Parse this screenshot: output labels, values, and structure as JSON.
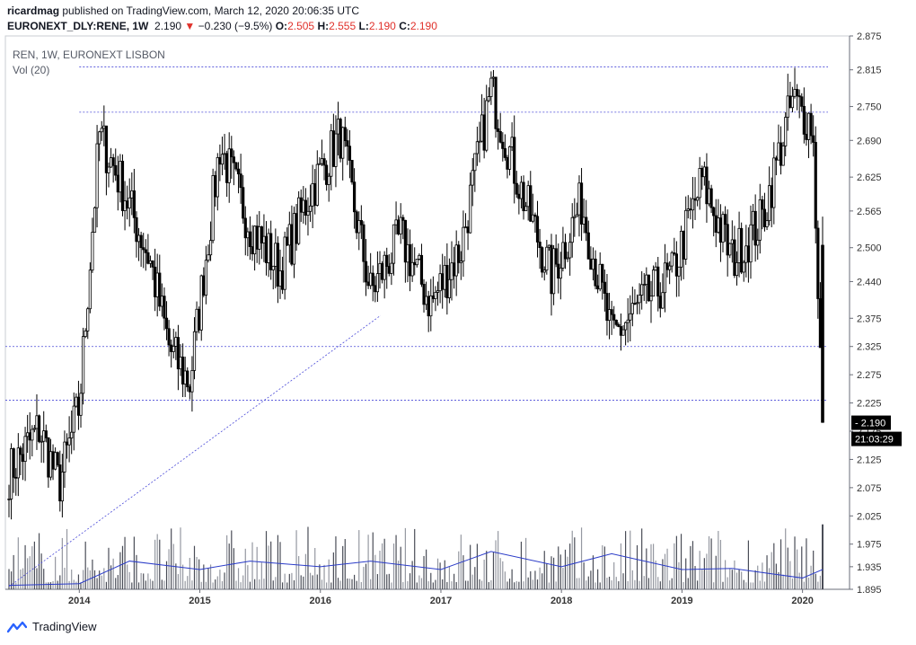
{
  "header": {
    "publisher": "ricardmag",
    "published_text": "published on TradingView.com, March 12, 2020 20:06:35 UTC",
    "symbol": "EURONEXT_DLY:RENE, 1W",
    "last": "2.190",
    "change_arrow": "▼",
    "change": "−0.230 (−9.5%)",
    "o_label": "O:",
    "o_value": "2.505",
    "h_label": "H:",
    "h_value": "2.555",
    "l_label": "L:",
    "l_value": "2.190",
    "c_label": "C:",
    "c_value": "2.190"
  },
  "legend": {
    "title": "REN, 1W, EURONEXT LISBON",
    "volume": "Vol (20)"
  },
  "footer": {
    "brand": "TradingView",
    "logo_icon": "tradingview-logo-icon"
  },
  "chart_data": {
    "type": "candlestick",
    "interval": "1W",
    "x_range": [
      "2013-06",
      "2020-03"
    ],
    "x_ticks": [
      "2014",
      "2015",
      "2016",
      "2017",
      "2018",
      "2019",
      "2020"
    ],
    "ylim": [
      1.895,
      2.875
    ],
    "y_ticks": [
      "1.895",
      "1.935",
      "1.975",
      "2.025",
      "2.075",
      "2.125",
      "2.175",
      "2.225",
      "2.275",
      "2.325",
      "2.375",
      "2.440",
      "2.500",
      "2.565",
      "2.625",
      "2.690",
      "2.750",
      "2.815",
      "2.875"
    ],
    "last_price_label": "2.190",
    "countdown_label": "21:03:29",
    "horizontal_levels": [
      2.82,
      2.74,
      2.325,
      2.23
    ],
    "trendline": {
      "from": [
        "2013-06",
        1.9
      ],
      "to": [
        "2016-07",
        2.38
      ]
    },
    "close_path": [
      [
        "2013-06",
        2.1
      ],
      [
        "2013-09",
        2.18
      ],
      [
        "2013-11",
        2.08
      ],
      [
        "2014-01",
        2.22
      ],
      [
        "2014-03",
        2.7
      ],
      [
        "2014-05",
        2.62
      ],
      [
        "2014-08",
        2.48
      ],
      [
        "2014-10",
        2.32
      ],
      [
        "2014-12",
        2.26
      ],
      [
        "2015-03",
        2.68
      ],
      [
        "2015-06",
        2.54
      ],
      [
        "2015-09",
        2.46
      ],
      [
        "2015-12",
        2.6
      ],
      [
        "2016-03",
        2.7
      ],
      [
        "2016-06",
        2.42
      ],
      [
        "2016-09",
        2.52
      ],
      [
        "2016-12",
        2.4
      ],
      [
        "2017-03",
        2.5
      ],
      [
        "2017-06",
        2.78
      ],
      [
        "2017-09",
        2.6
      ],
      [
        "2017-12",
        2.45
      ],
      [
        "2018-03",
        2.58
      ],
      [
        "2018-06",
        2.34
      ],
      [
        "2018-09",
        2.4
      ],
      [
        "2018-12",
        2.45
      ],
      [
        "2019-03",
        2.62
      ],
      [
        "2019-06",
        2.48
      ],
      [
        "2019-09",
        2.55
      ],
      [
        "2019-12",
        2.76
      ],
      [
        "2020-02",
        2.72
      ],
      [
        "2020-03",
        2.19
      ]
    ],
    "last_candle": {
      "date": "2020-03",
      "open": 2.505,
      "high": 2.555,
      "low": 2.19,
      "close": 2.19
    },
    "volume_ma": [
      [
        "2013-06",
        1.902
      ],
      [
        "2014-01",
        1.905
      ],
      [
        "2014-06",
        1.945
      ],
      [
        "2015-01",
        1.93
      ],
      [
        "2015-06",
        1.945
      ],
      [
        "2016-01",
        1.935
      ],
      [
        "2016-06",
        1.945
      ],
      [
        "2017-01",
        1.93
      ],
      [
        "2017-06",
        1.962
      ],
      [
        "2018-01",
        1.935
      ],
      [
        "2018-06",
        1.958
      ],
      [
        "2019-01",
        1.93
      ],
      [
        "2019-06",
        1.932
      ],
      [
        "2020-01",
        1.915
      ],
      [
        "2020-03",
        1.93
      ]
    ],
    "colors": {
      "candle": "#000000",
      "level_line": "#4a4ad8",
      "volume_ma": "#2b3cc8",
      "volume_bar": "#9598a1",
      "price_label_bg": "#000000",
      "change_red": "#e0312b"
    }
  }
}
